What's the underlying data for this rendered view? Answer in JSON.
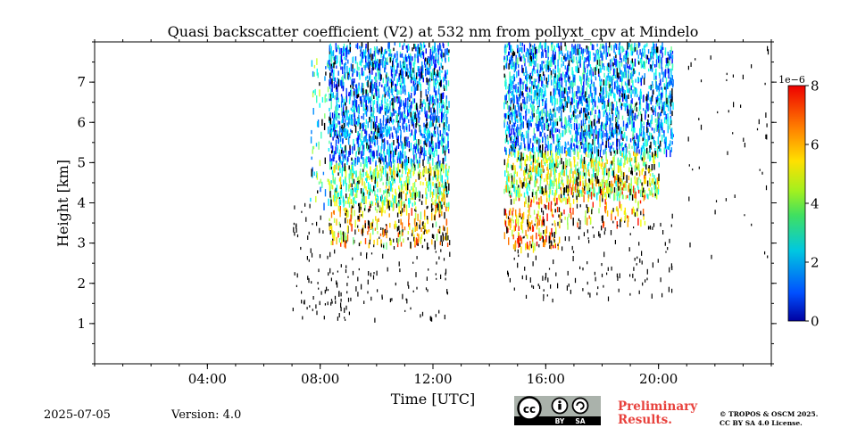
{
  "chart_data": {
    "type": "heatmap",
    "title": "Quasi backscatter coefficient (V2) at 532 nm from pollyxt_cpv at Mindelo",
    "xlabel": "Time [UTC]",
    "ylabel": "Height [km]",
    "x_unit": "hours UTC",
    "xlim": [
      0,
      24
    ],
    "ylim": [
      0,
      8
    ],
    "x_ticks": [
      {
        "value": 4,
        "label": "04:00"
      },
      {
        "value": 8,
        "label": "08:00"
      },
      {
        "value": 12,
        "label": "12:00"
      },
      {
        "value": 16,
        "label": "16:00"
      },
      {
        "value": 20,
        "label": "20:00"
      }
    ],
    "x_minor_step": 1,
    "y_ticks": [
      {
        "value": 1,
        "label": "1"
      },
      {
        "value": 2,
        "label": "2"
      },
      {
        "value": 3,
        "label": "3"
      },
      {
        "value": 4,
        "label": "4"
      },
      {
        "value": 5,
        "label": "5"
      },
      {
        "value": 6,
        "label": "6"
      },
      {
        "value": 7,
        "label": "7"
      }
    ],
    "y_minor_step": 0.5,
    "colorbar": {
      "range": [
        0,
        8
      ],
      "ticks": [
        "0",
        "2",
        "4",
        "6",
        "8"
      ],
      "exponent_label": "1e−6",
      "colormap": "jet"
    },
    "data_blocks": [
      {
        "x": [
          7.6,
          8.3
        ],
        "y": [
          4.0,
          7.9
        ],
        "density": 0.1,
        "level": 3.2
      },
      {
        "x": [
          8.3,
          12.55
        ],
        "y": [
          5.0,
          8.0
        ],
        "density": 0.55,
        "level": 2.2
      },
      {
        "x": [
          8.3,
          12.55
        ],
        "y": [
          4.0,
          5.0
        ],
        "density": 0.5,
        "level": 4.2
      },
      {
        "x": [
          8.3,
          12.55
        ],
        "y": [
          3.0,
          4.0
        ],
        "density": 0.25,
        "level": 5.3
      },
      {
        "x": [
          14.5,
          20.5
        ],
        "y": [
          5.3,
          8.0
        ],
        "density": 0.55,
        "level": 2.4
      },
      {
        "x": [
          14.5,
          20.0
        ],
        "y": [
          4.2,
          5.3
        ],
        "density": 0.5,
        "level": 4.3
      },
      {
        "x": [
          14.5,
          16.5
        ],
        "y": [
          2.9,
          4.2
        ],
        "density": 0.3,
        "level": 5.8
      },
      {
        "x": [
          16.5,
          19.5
        ],
        "y": [
          3.5,
          4.7
        ],
        "density": 0.2,
        "level": 5.5
      }
    ],
    "noise_regions": [
      {
        "x": [
          7.0,
          12.6
        ],
        "y": [
          1.1,
          4.0
        ],
        "density": 0.06
      },
      {
        "x": [
          14.5,
          20.5
        ],
        "y": [
          1.6,
          4.0
        ],
        "density": 0.05
      },
      {
        "x": [
          21.0,
          24.0
        ],
        "y": [
          2.5,
          8.0
        ],
        "density": 0.012
      }
    ]
  },
  "footer": {
    "date": "2025-07-05",
    "version": "Version: 4.0",
    "preliminary_line1": "Preliminary",
    "preliminary_line2": "Results.",
    "copyright_line1": "© TROPOS & OSCM 2025.",
    "copyright_line2": "CC BY SA 4.0 License.",
    "license_badge": {
      "cc": "cc",
      "by": "BY",
      "sa": "SA"
    }
  },
  "colors": {
    "noise": "#000000",
    "prelim": "#e8423d"
  }
}
